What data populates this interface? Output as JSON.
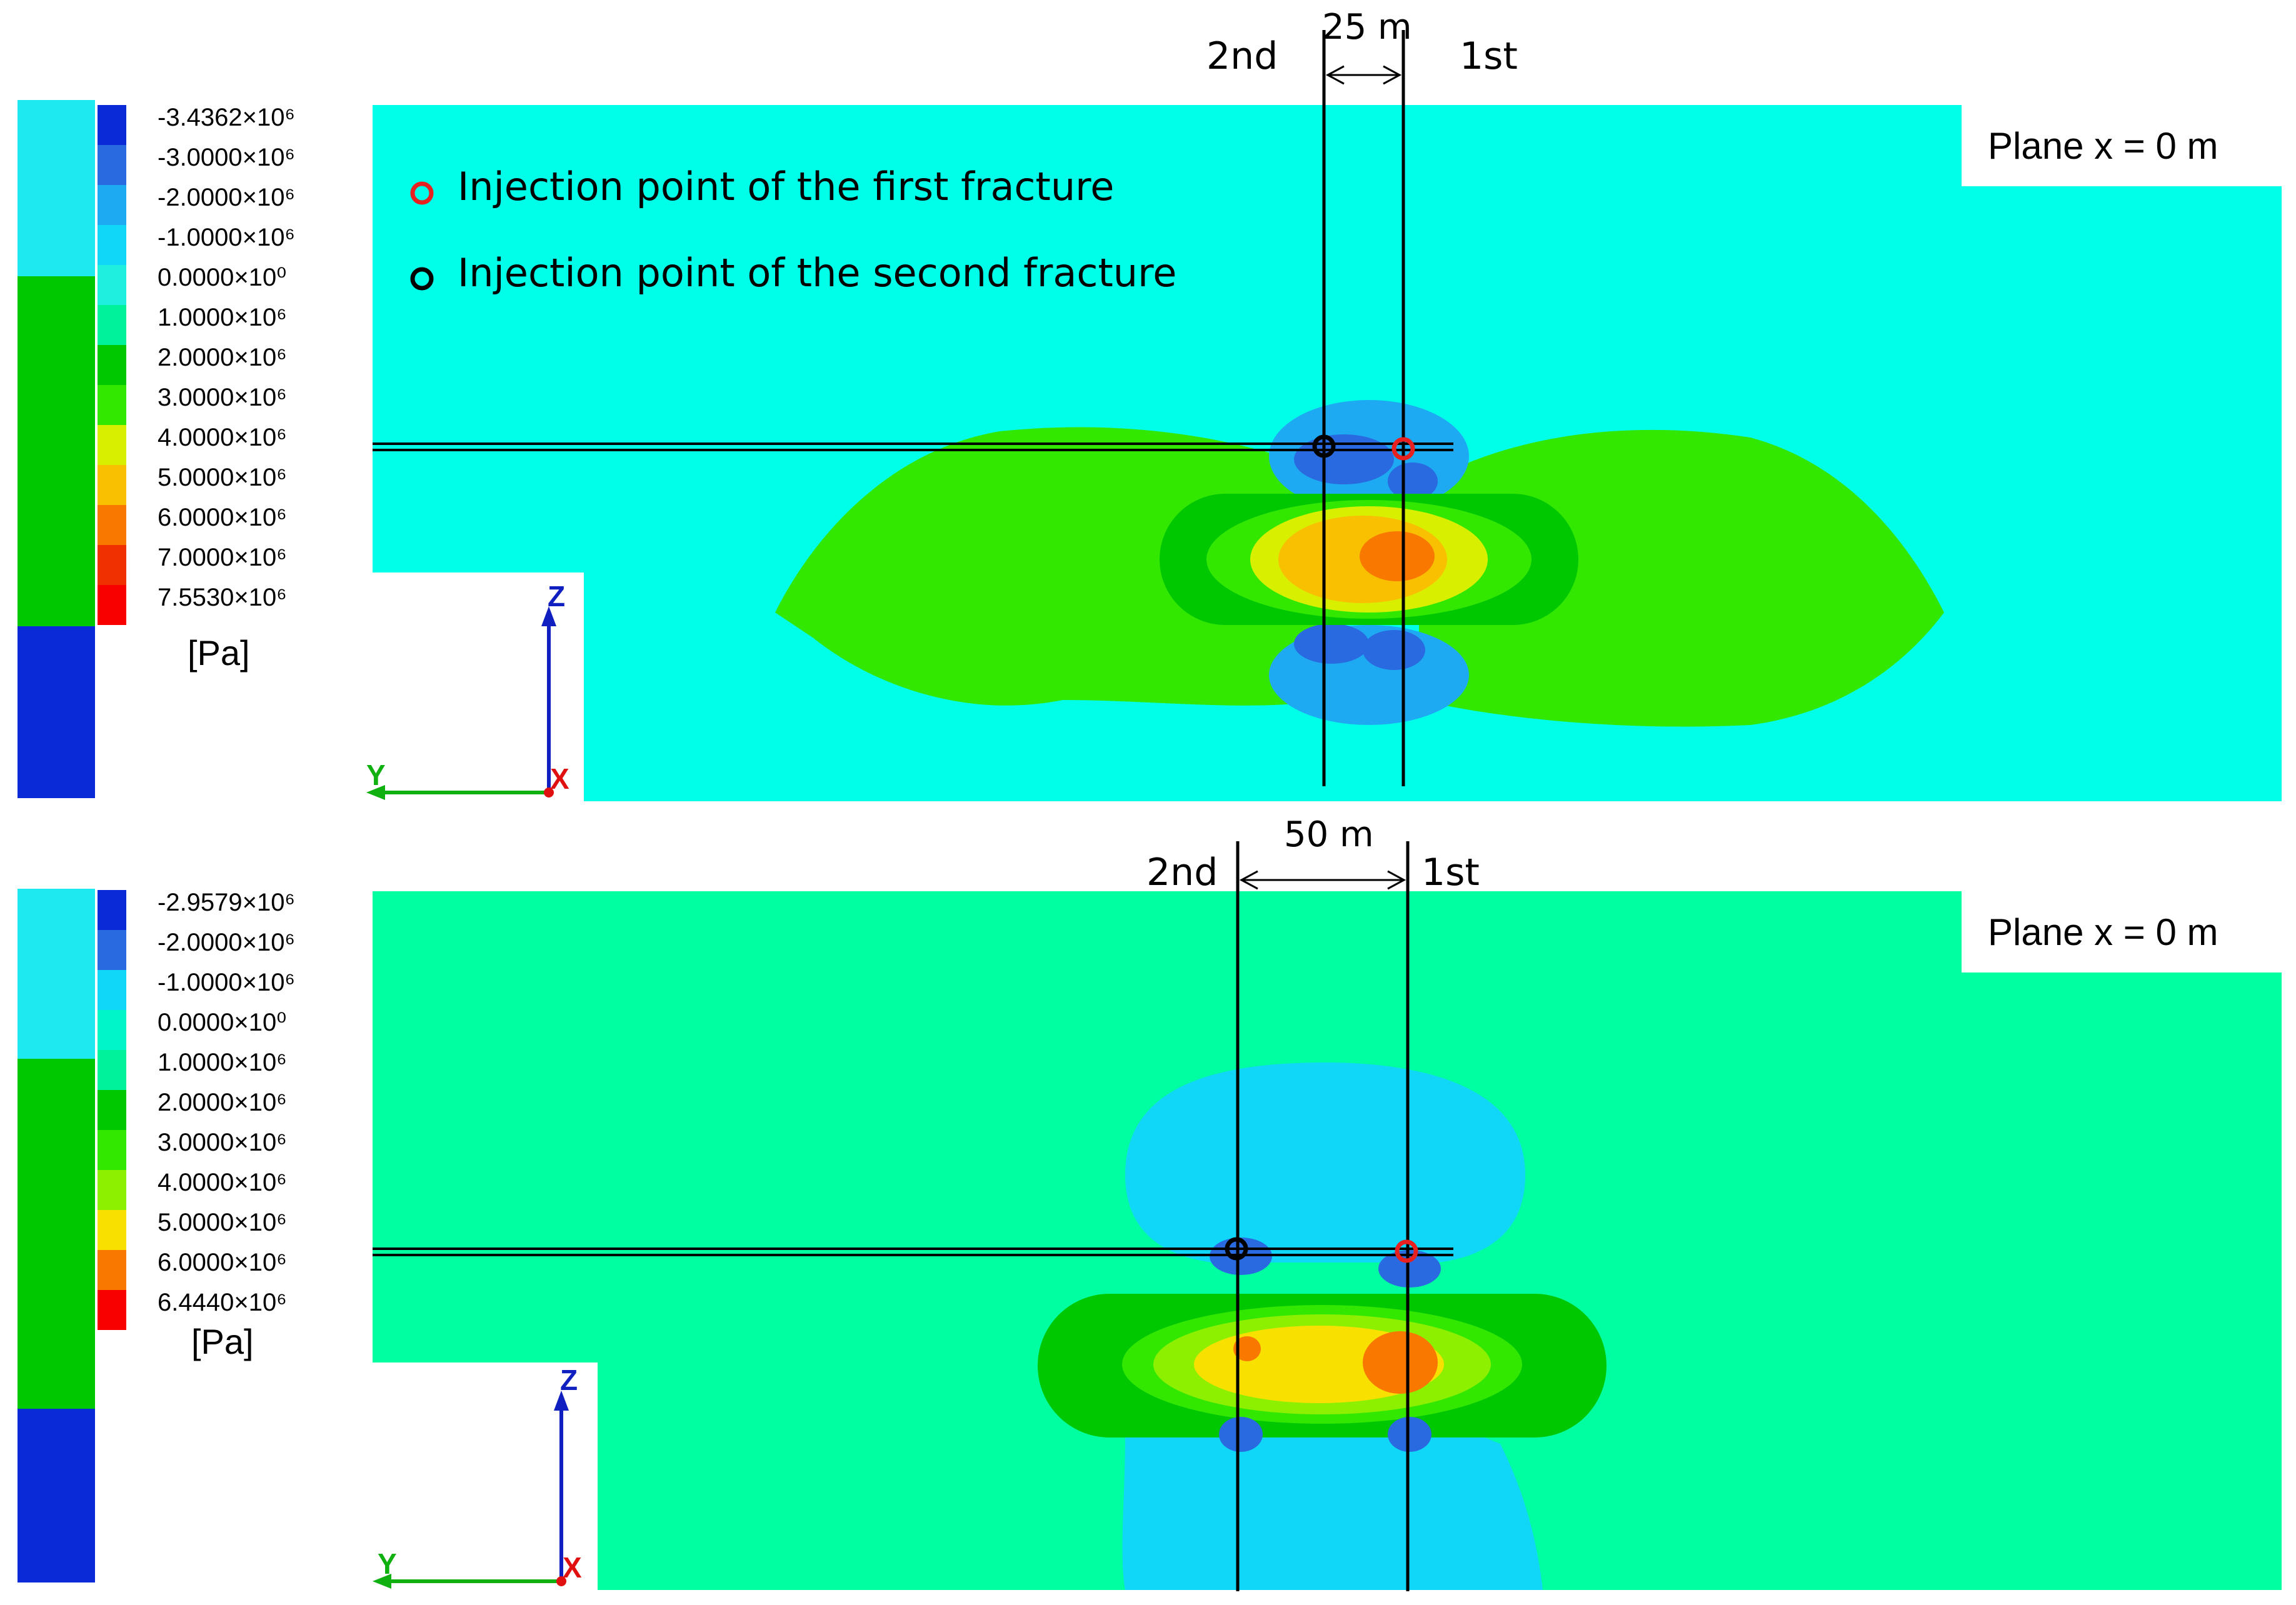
{
  "colors": {
    "c_n3": "#0a2ad8",
    "c_n2": "#2a6ae0",
    "c_n1": "#1eaaf2",
    "c_0": "#1ee8f0",
    "c_p1": "#00f29a",
    "c_p2": "#00c800",
    "c_p3": "#33e800",
    "c_p4": "#d8f000",
    "c_p5": "#f8c000",
    "c_p6": "#f87800",
    "c_p7": "#f03000",
    "plain_cyan": "#00ffe8",
    "plain_green": "#00ffa0",
    "legend_top_colors": [
      "#0a2ad8",
      "#2a6ae0",
      "#1eaaf2",
      "#10d6f8",
      "#1ef0e0",
      "#00f29a",
      "#00c800",
      "#33e800",
      "#d8f000",
      "#f8c000",
      "#f87800",
      "#f03000",
      "#f80000"
    ],
    "legend_bottom_colors": [
      "#0a2ad8",
      "#2a6ae0",
      "#10d6f8",
      "#00f6c8",
      "#00f29a",
      "#00c800",
      "#33e800",
      "#8cf000",
      "#f8e000",
      "#f87800",
      "#f80000"
    ],
    "first_marker": "#e82020",
    "second_marker": "#000000",
    "axis_z": "#1020c0",
    "axis_y": "#10b010",
    "axis_x": "#e01010"
  },
  "top": {
    "legend_labels": [
      "-3.4362×10⁶",
      "-3.0000×10⁶",
      "-2.0000×10⁶",
      "-1.0000×10⁶",
      "0.0000×10⁰",
      "1.0000×10⁶",
      "2.0000×10⁶",
      "3.0000×10⁶",
      "4.0000×10⁶",
      "5.0000×10⁶",
      "6.0000×10⁶",
      "7.0000×10⁶",
      "7.5530×10⁶"
    ],
    "unit": "[Pa]",
    "plane": "Plane x = 0 m",
    "spacing": "25 m",
    "label_second": "2nd",
    "label_first": "1st",
    "legend_first": "Injection point of the first fracture",
    "legend_second": "Injection point of the second fracture",
    "axis_z": "Z",
    "axis_y": "Y",
    "axis_x": "X"
  },
  "bottom": {
    "legend_labels": [
      "-2.9579×10⁶",
      "-2.0000×10⁶",
      "-1.0000×10⁶",
      "0.0000×10⁰",
      "1.0000×10⁶",
      "2.0000×10⁶",
      "3.0000×10⁶",
      "4.0000×10⁶",
      "5.0000×10⁶",
      "6.0000×10⁶",
      "6.4440×10⁶"
    ],
    "unit": "[Pa]",
    "plane": "Plane x = 0 m",
    "spacing": "50 m",
    "label_second": "2nd",
    "label_first": "1st",
    "axis_z": "Z",
    "axis_y": "Y",
    "axis_x": "X"
  }
}
